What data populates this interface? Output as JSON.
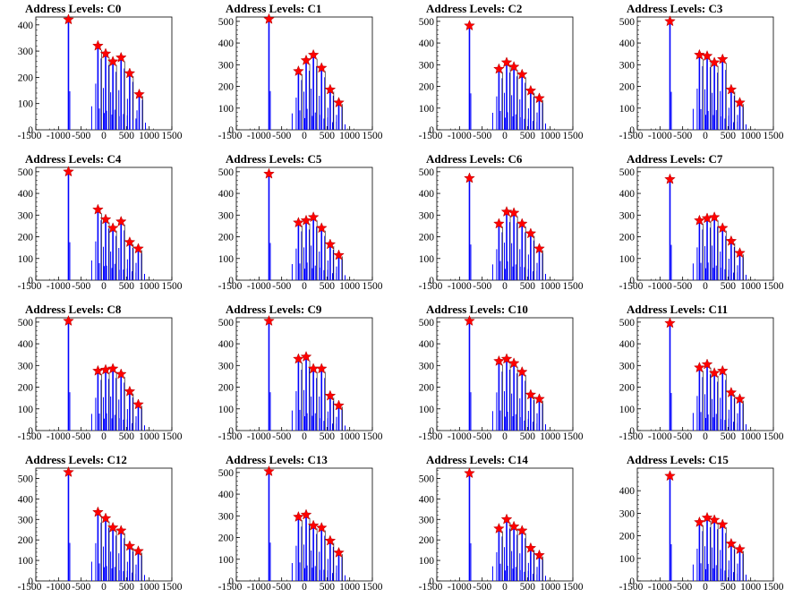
{
  "colors": {
    "hist": "#0000ff",
    "hist_secondary": "#000000",
    "star": "#ff0000",
    "axis": "#000000"
  },
  "chart_data": [
    {
      "type": "bar",
      "title": "Address Levels: C0",
      "xlim": [
        -1500,
        1500
      ],
      "ylim": [
        0,
        430
      ],
      "yticks": [
        0,
        100,
        200,
        300,
        400
      ],
      "xticks": [
        -1500,
        -1000,
        -500,
        0,
        500,
        1000,
        1500
      ],
      "peaks": [
        {
          "x": -780,
          "y": 420
        },
        {
          "x": -130,
          "y": 320
        },
        {
          "x": 40,
          "y": 290
        },
        {
          "x": 200,
          "y": 260
        },
        {
          "x": 380,
          "y": 275
        },
        {
          "x": 570,
          "y": 215
        },
        {
          "x": 780,
          "y": 135
        }
      ]
    },
    {
      "type": "bar",
      "title": "Address Levels: C1",
      "xlim": [
        -1500,
        1500
      ],
      "ylim": [
        0,
        520
      ],
      "yticks": [
        0,
        100,
        200,
        300,
        400,
        500
      ],
      "xticks": [
        -1500,
        -1000,
        -500,
        0,
        500,
        1000,
        1500
      ],
      "peaks": [
        {
          "x": -780,
          "y": 510
        },
        {
          "x": -130,
          "y": 270
        },
        {
          "x": 40,
          "y": 320
        },
        {
          "x": 200,
          "y": 345
        },
        {
          "x": 380,
          "y": 285
        },
        {
          "x": 570,
          "y": 185
        },
        {
          "x": 760,
          "y": 125
        }
      ]
    },
    {
      "type": "bar",
      "title": "Address Levels: C2",
      "xlim": [
        -1500,
        1500
      ],
      "ylim": [
        0,
        520
      ],
      "yticks": [
        0,
        100,
        200,
        300,
        400,
        500
      ],
      "xticks": [
        -1500,
        -1000,
        -500,
        0,
        500,
        1000,
        1500
      ],
      "peaks": [
        {
          "x": -780,
          "y": 480
        },
        {
          "x": -130,
          "y": 280
        },
        {
          "x": 40,
          "y": 310
        },
        {
          "x": 200,
          "y": 290
        },
        {
          "x": 380,
          "y": 255
        },
        {
          "x": 570,
          "y": 180
        },
        {
          "x": 760,
          "y": 145
        }
      ]
    },
    {
      "type": "bar",
      "title": "Address Levels: C3",
      "xlim": [
        -1500,
        1500
      ],
      "ylim": [
        0,
        520
      ],
      "yticks": [
        0,
        100,
        200,
        300,
        400,
        500
      ],
      "xticks": [
        -1500,
        -1000,
        -500,
        0,
        500,
        1000,
        1500
      ],
      "peaks": [
        {
          "x": -780,
          "y": 500
        },
        {
          "x": -130,
          "y": 345
        },
        {
          "x": 40,
          "y": 340
        },
        {
          "x": 200,
          "y": 310
        },
        {
          "x": 380,
          "y": 325
        },
        {
          "x": 570,
          "y": 185
        },
        {
          "x": 760,
          "y": 125
        }
      ]
    },
    {
      "type": "bar",
      "title": "Address Levels: C4",
      "xlim": [
        -1500,
        1500
      ],
      "ylim": [
        0,
        520
      ],
      "yticks": [
        0,
        100,
        200,
        300,
        400,
        500
      ],
      "xticks": [
        -1500,
        -1000,
        -500,
        0,
        500,
        1000,
        1500
      ],
      "peaks": [
        {
          "x": -780,
          "y": 500
        },
        {
          "x": -130,
          "y": 325
        },
        {
          "x": 40,
          "y": 280
        },
        {
          "x": 200,
          "y": 240
        },
        {
          "x": 380,
          "y": 270
        },
        {
          "x": 570,
          "y": 175
        },
        {
          "x": 760,
          "y": 145
        }
      ]
    },
    {
      "type": "bar",
      "title": "Address Levels: C5",
      "xlim": [
        -1500,
        1500
      ],
      "ylim": [
        0,
        520
      ],
      "yticks": [
        0,
        100,
        200,
        300,
        400,
        500
      ],
      "xticks": [
        -1500,
        -1000,
        -500,
        0,
        500,
        1000,
        1500
      ],
      "peaks": [
        {
          "x": -780,
          "y": 490
        },
        {
          "x": -130,
          "y": 265
        },
        {
          "x": 40,
          "y": 275
        },
        {
          "x": 200,
          "y": 290
        },
        {
          "x": 380,
          "y": 240
        },
        {
          "x": 570,
          "y": 165
        },
        {
          "x": 760,
          "y": 115
        }
      ]
    },
    {
      "type": "bar",
      "title": "Address Levels: C6",
      "xlim": [
        -1500,
        1500
      ],
      "ylim": [
        0,
        520
      ],
      "yticks": [
        0,
        100,
        200,
        300,
        400,
        500
      ],
      "xticks": [
        -1500,
        -1000,
        -500,
        0,
        500,
        1000,
        1500
      ],
      "peaks": [
        {
          "x": -780,
          "y": 470
        },
        {
          "x": -130,
          "y": 260
        },
        {
          "x": 40,
          "y": 315
        },
        {
          "x": 200,
          "y": 310
        },
        {
          "x": 380,
          "y": 260
        },
        {
          "x": 570,
          "y": 215
        },
        {
          "x": 760,
          "y": 145
        }
      ]
    },
    {
      "type": "bar",
      "title": "Address Levels: C7",
      "xlim": [
        -1500,
        1500
      ],
      "ylim": [
        0,
        520
      ],
      "yticks": [
        0,
        100,
        200,
        300,
        400,
        500
      ],
      "xticks": [
        -1500,
        -1000,
        -500,
        0,
        500,
        1000,
        1500
      ],
      "peaks": [
        {
          "x": -780,
          "y": 465
        },
        {
          "x": -130,
          "y": 275
        },
        {
          "x": 40,
          "y": 285
        },
        {
          "x": 200,
          "y": 290
        },
        {
          "x": 380,
          "y": 240
        },
        {
          "x": 570,
          "y": 180
        },
        {
          "x": 760,
          "y": 125
        }
      ]
    },
    {
      "type": "bar",
      "title": "Address Levels: C8",
      "xlim": [
        -1500,
        1500
      ],
      "ylim": [
        0,
        520
      ],
      "yticks": [
        0,
        100,
        200,
        300,
        400,
        500
      ],
      "xticks": [
        -1500,
        -1000,
        -500,
        0,
        500,
        1000,
        1500
      ],
      "peaks": [
        {
          "x": -780,
          "y": 505
        },
        {
          "x": -130,
          "y": 275
        },
        {
          "x": 40,
          "y": 280
        },
        {
          "x": 200,
          "y": 285
        },
        {
          "x": 380,
          "y": 260
        },
        {
          "x": 570,
          "y": 180
        },
        {
          "x": 760,
          "y": 120
        }
      ]
    },
    {
      "type": "bar",
      "title": "Address Levels: C9",
      "xlim": [
        -1500,
        1500
      ],
      "ylim": [
        0,
        520
      ],
      "yticks": [
        0,
        100,
        200,
        300,
        400,
        500
      ],
      "xticks": [
        -1500,
        -1000,
        -500,
        0,
        500,
        1000,
        1500
      ],
      "peaks": [
        {
          "x": -780,
          "y": 505
        },
        {
          "x": -130,
          "y": 330
        },
        {
          "x": 40,
          "y": 340
        },
        {
          "x": 200,
          "y": 285
        },
        {
          "x": 380,
          "y": 285
        },
        {
          "x": 570,
          "y": 160
        },
        {
          "x": 760,
          "y": 115
        }
      ]
    },
    {
      "type": "bar",
      "title": "Address Levels: C10",
      "xlim": [
        -1500,
        1500
      ],
      "ylim": [
        0,
        520
      ],
      "yticks": [
        0,
        100,
        200,
        300,
        400,
        500
      ],
      "xticks": [
        -1500,
        -1000,
        -500,
        0,
        500,
        1000,
        1500
      ],
      "peaks": [
        {
          "x": -780,
          "y": 505
        },
        {
          "x": -130,
          "y": 320
        },
        {
          "x": 40,
          "y": 330
        },
        {
          "x": 200,
          "y": 310
        },
        {
          "x": 380,
          "y": 270
        },
        {
          "x": 570,
          "y": 165
        },
        {
          "x": 760,
          "y": 145
        }
      ]
    },
    {
      "type": "bar",
      "title": "Address Levels: C11",
      "xlim": [
        -1500,
        1500
      ],
      "ylim": [
        0,
        520
      ],
      "yticks": [
        0,
        100,
        200,
        300,
        400,
        500
      ],
      "xticks": [
        -1500,
        -1000,
        -500,
        0,
        500,
        1000,
        1500
      ],
      "peaks": [
        {
          "x": -780,
          "y": 495
        },
        {
          "x": -130,
          "y": 290
        },
        {
          "x": 40,
          "y": 305
        },
        {
          "x": 200,
          "y": 265
        },
        {
          "x": 380,
          "y": 275
        },
        {
          "x": 570,
          "y": 175
        },
        {
          "x": 760,
          "y": 145
        }
      ]
    },
    {
      "type": "bar",
      "title": "Address Levels: C12",
      "xlim": [
        -1500,
        1500
      ],
      "ylim": [
        0,
        550
      ],
      "yticks": [
        0,
        100,
        200,
        300,
        400,
        500
      ],
      "xticks": [
        -1500,
        -1000,
        -500,
        0,
        500,
        1000,
        1500
      ],
      "peaks": [
        {
          "x": -780,
          "y": 530
        },
        {
          "x": -130,
          "y": 335
        },
        {
          "x": 40,
          "y": 305
        },
        {
          "x": 200,
          "y": 260
        },
        {
          "x": 380,
          "y": 245
        },
        {
          "x": 570,
          "y": 170
        },
        {
          "x": 760,
          "y": 145
        }
      ]
    },
    {
      "type": "bar",
      "title": "Address Levels: C13",
      "xlim": [
        -1500,
        1500
      ],
      "ylim": [
        0,
        520
      ],
      "yticks": [
        0,
        100,
        200,
        300,
        400,
        500
      ],
      "xticks": [
        -1500,
        -1000,
        -500,
        0,
        500,
        1000,
        1500
      ],
      "peaks": [
        {
          "x": -780,
          "y": 505
        },
        {
          "x": -130,
          "y": 295
        },
        {
          "x": 40,
          "y": 305
        },
        {
          "x": 200,
          "y": 255
        },
        {
          "x": 380,
          "y": 245
        },
        {
          "x": 570,
          "y": 185
        },
        {
          "x": 760,
          "y": 130
        }
      ]
    },
    {
      "type": "bar",
      "title": "Address Levels: C14",
      "xlim": [
        -1500,
        1500
      ],
      "ylim": [
        0,
        550
      ],
      "yticks": [
        0,
        100,
        200,
        300,
        400,
        500
      ],
      "xticks": [
        -1500,
        -1000,
        -500,
        0,
        500,
        1000,
        1500
      ],
      "peaks": [
        {
          "x": -780,
          "y": 525
        },
        {
          "x": -130,
          "y": 255
        },
        {
          "x": 40,
          "y": 300
        },
        {
          "x": 200,
          "y": 265
        },
        {
          "x": 380,
          "y": 245
        },
        {
          "x": 570,
          "y": 160
        },
        {
          "x": 760,
          "y": 125
        }
      ]
    },
    {
      "type": "bar",
      "title": "Address Levels: C15",
      "xlim": [
        -1500,
        1500
      ],
      "ylim": [
        0,
        500
      ],
      "yticks": [
        0,
        100,
        200,
        300,
        400
      ],
      "xticks": [
        -1500,
        -1000,
        -500,
        0,
        500,
        1000,
        1500
      ],
      "peaks": [
        {
          "x": -780,
          "y": 465
        },
        {
          "x": -130,
          "y": 260
        },
        {
          "x": 40,
          "y": 280
        },
        {
          "x": 200,
          "y": 270
        },
        {
          "x": 380,
          "y": 250
        },
        {
          "x": 570,
          "y": 165
        },
        {
          "x": 760,
          "y": 140
        }
      ]
    }
  ]
}
